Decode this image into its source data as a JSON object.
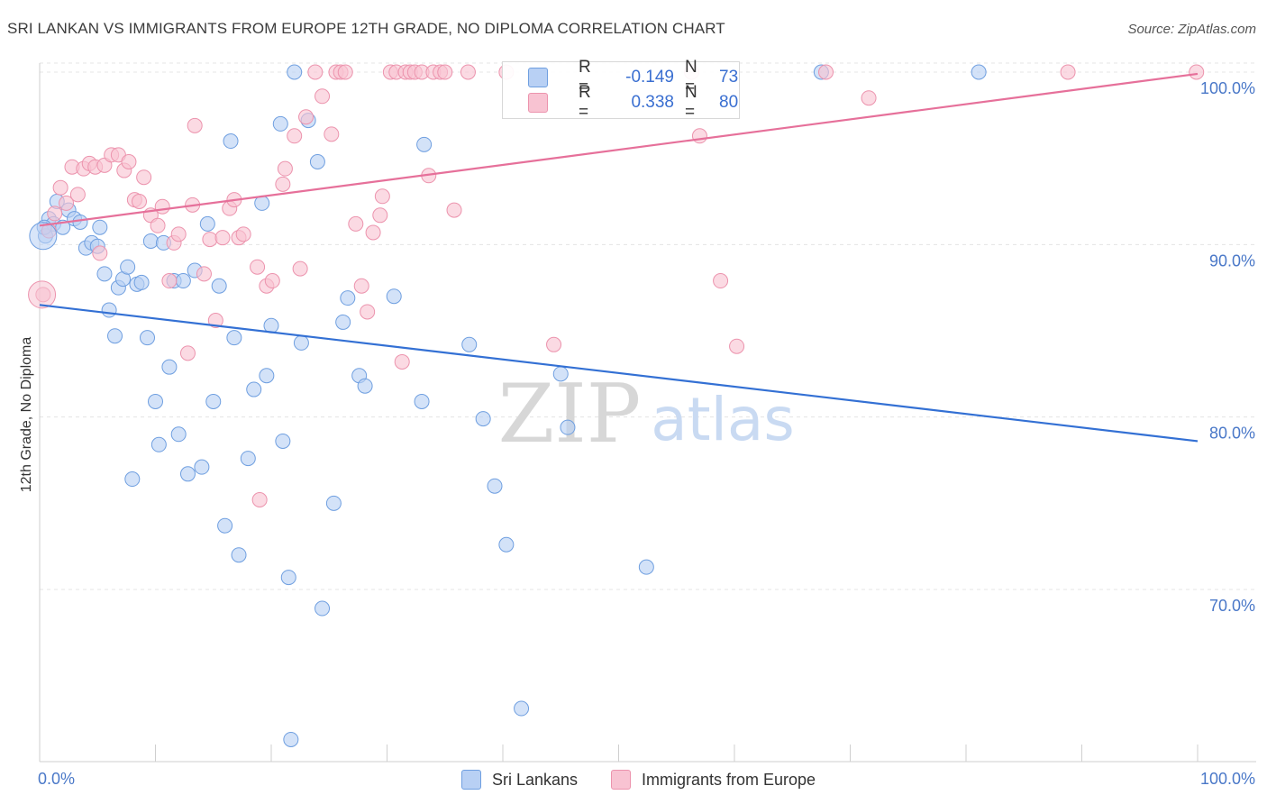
{
  "title": "SRI LANKAN VS IMMIGRANTS FROM EUROPE 12TH GRADE, NO DIPLOMA CORRELATION CHART",
  "source": "Source: ZipAtlas.com",
  "watermark": {
    "zip": "ZIP",
    "atlas": "atlas"
  },
  "colors": {
    "blue_fill": "#b8d0f4",
    "blue_stroke": "#6f9fe0",
    "blue_line": "#3370d4",
    "pink_fill": "#f8c3d2",
    "pink_stroke": "#ec93ad",
    "pink_line": "#e6709a",
    "tick_label": "#4a78c8",
    "grid": "#e4e4e4"
  },
  "legend": {
    "rows": [
      {
        "label": "R =",
        "r": "-0.149",
        "n_label": "N =",
        "n": "73"
      },
      {
        "label": "R =",
        "r": "0.338",
        "n_label": "N =",
        "n": "80"
      }
    ]
  },
  "bottom_legend": {
    "series1": "Sri Lankans",
    "series2": "Immigrants from Europe"
  },
  "chart_data": {
    "type": "scatter",
    "title": "SRI LANKAN VS IMMIGRANTS FROM EUROPE 12TH GRADE, NO DIPLOMA CORRELATION CHART",
    "xlabel": "",
    "ylabel": "12th Grade, No Diploma",
    "xlim": [
      0,
      100
    ],
    "ylim": [
      61.5,
      102
    ],
    "x_tick_labels": [
      {
        "value": 0,
        "label": "0.0%"
      },
      {
        "value": 100,
        "label": "100.0%"
      }
    ],
    "y_ticks": [
      {
        "value": 70,
        "label": "70.0%"
      },
      {
        "value": 80,
        "label": "80.0%"
      },
      {
        "value": 90,
        "label": "90.0%"
      },
      {
        "value": 100,
        "label": "100.0%"
      }
    ],
    "grid": true,
    "series": [
      {
        "name": "Sri Lankans",
        "R": -0.149,
        "N": 73,
        "trend": {
          "x": [
            0,
            100
          ],
          "y": [
            86.5,
            78.6
          ]
        },
        "points": [
          [
            0.5,
            90.5
          ],
          [
            0.8,
            91.5
          ],
          [
            1.2,
            91.2
          ],
          [
            1.5,
            92.5
          ],
          [
            2.0,
            91.0
          ],
          [
            2.5,
            92.0
          ],
          [
            3.0,
            91.5
          ],
          [
            3.5,
            91.3
          ],
          [
            4.0,
            89.8
          ],
          [
            4.5,
            90.1
          ],
          [
            5.0,
            89.9
          ],
          [
            5.2,
            91.0
          ],
          [
            5.6,
            88.3
          ],
          [
            6.0,
            86.2
          ],
          [
            6.5,
            84.7
          ],
          [
            6.8,
            87.5
          ],
          [
            7.2,
            88.0
          ],
          [
            7.6,
            88.7
          ],
          [
            8.0,
            76.4
          ],
          [
            8.4,
            87.7
          ],
          [
            8.8,
            87.8
          ],
          [
            9.3,
            84.6
          ],
          [
            9.6,
            90.2
          ],
          [
            10.0,
            80.9
          ],
          [
            10.3,
            78.4
          ],
          [
            10.7,
            90.1
          ],
          [
            11.2,
            82.9
          ],
          [
            11.6,
            87.9
          ],
          [
            12.0,
            79.0
          ],
          [
            12.4,
            87.9
          ],
          [
            12.8,
            76.7
          ],
          [
            13.4,
            88.5
          ],
          [
            14.0,
            77.1
          ],
          [
            14.5,
            91.2
          ],
          [
            15.0,
            80.9
          ],
          [
            15.5,
            87.6
          ],
          [
            16.0,
            73.7
          ],
          [
            16.5,
            96.0
          ],
          [
            16.8,
            84.6
          ],
          [
            17.2,
            72.0
          ],
          [
            18.0,
            77.6
          ],
          [
            18.5,
            81.6
          ],
          [
            19.2,
            92.4
          ],
          [
            19.6,
            82.4
          ],
          [
            20.0,
            85.3
          ],
          [
            20.8,
            97.0
          ],
          [
            21.0,
            78.6
          ],
          [
            21.5,
            70.7
          ],
          [
            21.7,
            61.3
          ],
          [
            22.0,
            100
          ],
          [
            22.6,
            84.3
          ],
          [
            23.2,
            97.2
          ],
          [
            24.0,
            94.8
          ],
          [
            24.4,
            68.9
          ],
          [
            25.4,
            75.0
          ],
          [
            26.2,
            85.5
          ],
          [
            26.6,
            86.9
          ],
          [
            27.6,
            82.4
          ],
          [
            28.1,
            81.8
          ],
          [
            30.6,
            87.0
          ],
          [
            33.0,
            80.9
          ],
          [
            33.2,
            95.8
          ],
          [
            37.1,
            84.2
          ],
          [
            38.3,
            79.9
          ],
          [
            39.3,
            76.0
          ],
          [
            40.3,
            72.6
          ],
          [
            41.6,
            63.1
          ],
          [
            45.0,
            82.5
          ],
          [
            45.6,
            79.4
          ],
          [
            52.4,
            71.3
          ],
          [
            67.5,
            100
          ],
          [
            81.1,
            100
          ],
          [
            0.4,
            91.0
          ]
        ]
      },
      {
        "name": "Immigrants from Europe",
        "R": 0.338,
        "N": 80,
        "trend": {
          "x": [
            0,
            100
          ],
          "y": [
            91.1,
            99.9
          ]
        },
        "points": [
          [
            0.3,
            87.1
          ],
          [
            0.8,
            90.8
          ],
          [
            1.3,
            91.8
          ],
          [
            1.8,
            93.3
          ],
          [
            2.3,
            92.4
          ],
          [
            2.8,
            94.5
          ],
          [
            3.3,
            92.9
          ],
          [
            3.8,
            94.4
          ],
          [
            4.3,
            94.7
          ],
          [
            4.8,
            94.5
          ],
          [
            5.2,
            89.5
          ],
          [
            5.6,
            94.6
          ],
          [
            6.2,
            95.2
          ],
          [
            6.8,
            95.2
          ],
          [
            7.3,
            94.3
          ],
          [
            7.7,
            94.8
          ],
          [
            8.2,
            92.6
          ],
          [
            8.6,
            92.5
          ],
          [
            9.0,
            93.9
          ],
          [
            9.6,
            91.7
          ],
          [
            10.2,
            91.1
          ],
          [
            10.6,
            92.2
          ],
          [
            11.2,
            87.9
          ],
          [
            11.6,
            90.1
          ],
          [
            12.0,
            90.6
          ],
          [
            12.8,
            83.7
          ],
          [
            13.2,
            92.3
          ],
          [
            13.4,
            96.9
          ],
          [
            14.2,
            88.3
          ],
          [
            14.7,
            90.3
          ],
          [
            15.2,
            85.6
          ],
          [
            15.8,
            90.4
          ],
          [
            16.4,
            92.1
          ],
          [
            16.8,
            92.6
          ],
          [
            17.2,
            90.4
          ],
          [
            17.6,
            90.6
          ],
          [
            18.8,
            88.7
          ],
          [
            19.0,
            75.2
          ],
          [
            19.6,
            87.6
          ],
          [
            20.1,
            87.9
          ],
          [
            21.0,
            93.5
          ],
          [
            21.2,
            94.4
          ],
          [
            22.0,
            96.3
          ],
          [
            22.5,
            88.6
          ],
          [
            23.0,
            97.4
          ],
          [
            23.8,
            100
          ],
          [
            24.4,
            98.6
          ],
          [
            25.2,
            96.4
          ],
          [
            25.6,
            100
          ],
          [
            26.0,
            100
          ],
          [
            26.4,
            100
          ],
          [
            27.3,
            91.2
          ],
          [
            27.8,
            87.6
          ],
          [
            28.3,
            86.1
          ],
          [
            28.8,
            90.7
          ],
          [
            29.4,
            91.7
          ],
          [
            29.6,
            92.8
          ],
          [
            30.3,
            100
          ],
          [
            30.8,
            100
          ],
          [
            31.3,
            83.2
          ],
          [
            31.6,
            100
          ],
          [
            32.0,
            100
          ],
          [
            32.4,
            100
          ],
          [
            33.0,
            100
          ],
          [
            33.6,
            94.0
          ],
          [
            34.0,
            100
          ],
          [
            34.6,
            100
          ],
          [
            35.0,
            100
          ],
          [
            35.8,
            92.0
          ],
          [
            37.0,
            100
          ],
          [
            40.3,
            100
          ],
          [
            44.4,
            84.2
          ],
          [
            56.3,
            100
          ],
          [
            57.0,
            96.3
          ],
          [
            58.8,
            87.9
          ],
          [
            60.2,
            84.1
          ],
          [
            67.9,
            100
          ],
          [
            71.6,
            98.5
          ],
          [
            88.8,
            100
          ],
          [
            99.9,
            100
          ]
        ]
      }
    ]
  }
}
